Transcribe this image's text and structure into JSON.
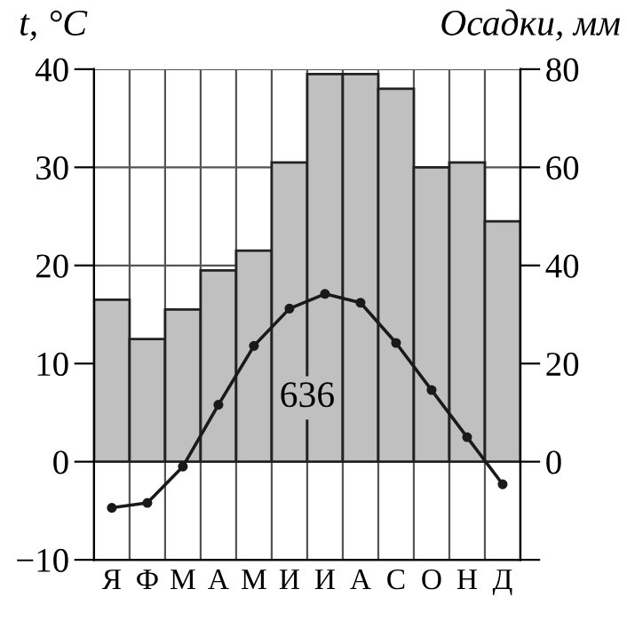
{
  "chart_data": {
    "type": "bar",
    "categories": [
      "Я",
      "Ф",
      "М",
      "А",
      "М",
      "И",
      "И",
      "А",
      "С",
      "О",
      "Н",
      "Д"
    ],
    "ylabel": "t, °C",
    "y2label": "Осадки, мм",
    "series": [
      {
        "axis": "y2",
        "color": "#c0c0c0",
        "values": [
          33,
          25,
          31,
          39,
          43,
          61,
          79,
          79,
          76,
          60,
          61,
          49
        ]
      },
      {
        "type": "line",
        "axis": "y",
        "color": "#1a1a1a",
        "marker": "circle",
        "line_style": "solid",
        "values": [
          -4.7,
          -4.2,
          -0.5,
          5.8,
          11.8,
          15.6,
          17.1,
          16.2,
          12.1,
          7.3,
          2.5,
          -2.3
        ]
      }
    ],
    "ylim": [
      -10,
      40
    ],
    "yticks": [
      -10,
      0,
      10,
      20,
      30,
      40
    ],
    "y2lim": [
      -20,
      80
    ],
    "y2ticks": [
      {
        "value": -20,
        "label": null
      },
      0,
      20,
      40,
      60,
      80
    ],
    "grid": true,
    "legend": false,
    "annotations": [
      "636"
    ]
  }
}
